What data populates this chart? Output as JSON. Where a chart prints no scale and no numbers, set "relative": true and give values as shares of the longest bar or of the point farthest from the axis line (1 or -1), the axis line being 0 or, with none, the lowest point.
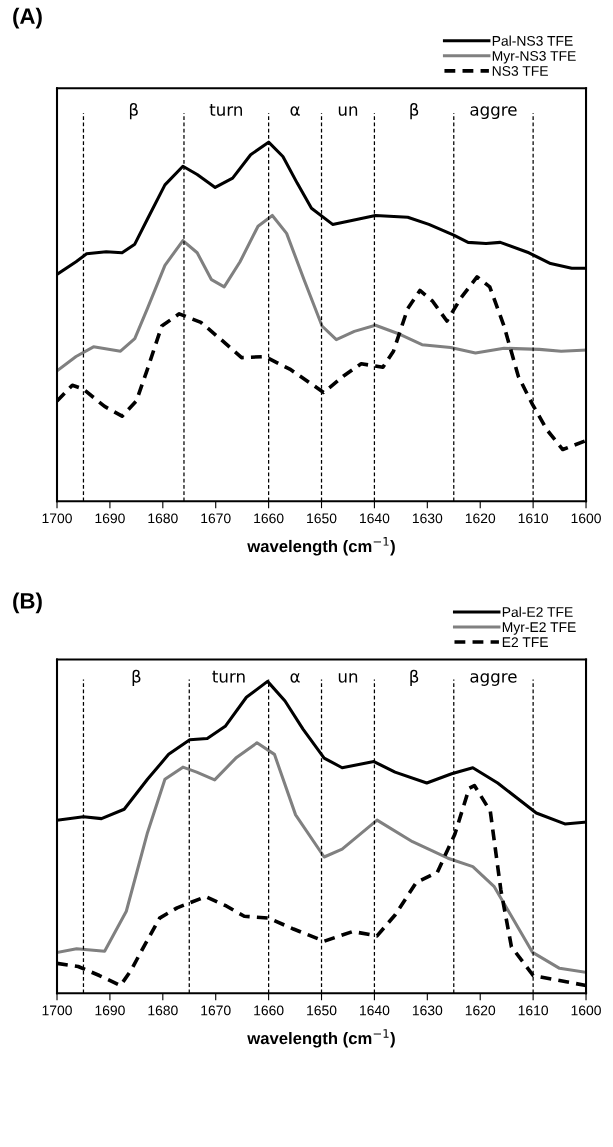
{
  "chart_data": [
    {
      "type": "line",
      "title": "(A)",
      "xlabel": "wavelength (cm$^{−1}$)",
      "relative": true,
      "legend": "top right",
      "tick_labels": "x",
      "grid": false,
      "xlim": [
        1700,
        1600
      ],
      "xticks": [
        1700,
        1690,
        1680,
        1670,
        1660,
        1650,
        1640,
        1630,
        1620,
        1610,
        1600
      ],
      "ref_lines": [
        {
          "axis": "x",
          "value": 1695,
          "line_style": "dashed",
          "color": "#000000"
        },
        {
          "axis": "x",
          "value": 1676,
          "line_style": "dashed",
          "color": "#000000"
        },
        {
          "axis": "x",
          "value": 1660,
          "line_style": "dashed",
          "color": "#000000"
        },
        {
          "axis": "x",
          "value": 1650,
          "line_style": "dashed",
          "color": "#000000"
        },
        {
          "axis": "x",
          "value": 1640,
          "line_style": "dashed",
          "color": "#000000"
        },
        {
          "axis": "x",
          "value": 1625,
          "line_style": "dashed",
          "color": "#000000"
        },
        {
          "axis": "x",
          "value": 1610,
          "line_style": "dashed",
          "color": "#000000"
        }
      ],
      "annotations": [
        "β",
        "turn",
        "α",
        "un",
        "β",
        "aggre"
      ],
      "series": [
        {
          "name": "Pal-NS3 TFE",
          "color": "#000000",
          "line_style": "solid",
          "x": [
            1700,
            1696.4,
            1694.4,
            1690.7,
            1687.7,
            1685.3,
            1682.9,
            1679.6,
            1676.2,
            1673.5,
            1670.1,
            1666.8,
            1663.4,
            1660,
            1657.3,
            1654.6,
            1651.9,
            1647.9,
            1644.5,
            1639.8,
            1633.7,
            1629.7,
            1625,
            1622.3,
            1618.9,
            1616.2,
            1610.8,
            1606.7,
            1602.7,
            1600
          ],
          "values": [
            0.632,
            0.667,
            0.689,
            0.695,
            0.692,
            0.716,
            0.786,
            0.881,
            0.933,
            0.91,
            0.874,
            0.9,
            0.965,
            1.0,
            0.96,
            0.886,
            0.816,
            0.771,
            0.781,
            0.796,
            0.791,
            0.771,
            0.741,
            0.721,
            0.718,
            0.721,
            0.692,
            0.662,
            0.649,
            0.649
          ]
        },
        {
          "name": "Myr-NS3 TFE",
          "color": "#808080",
          "line_style": "solid",
          "x": [
            1700,
            1696.4,
            1693.1,
            1688,
            1685.3,
            1682.9,
            1679.6,
            1676.2,
            1673.5,
            1670.8,
            1668.4,
            1665.4,
            1662,
            1659.3,
            1656.6,
            1653.3,
            1649.9,
            1647.2,
            1643.8,
            1639.8,
            1635.7,
            1631,
            1625.6,
            1620.9,
            1615.5,
            1608.8,
            1604.7,
            1600
          ],
          "values": [
            0.363,
            0.403,
            0.43,
            0.418,
            0.453,
            0.537,
            0.657,
            0.726,
            0.692,
            0.617,
            0.597,
            0.667,
            0.766,
            0.796,
            0.746,
            0.617,
            0.488,
            0.45,
            0.473,
            0.49,
            0.468,
            0.436,
            0.428,
            0.413,
            0.426,
            0.423,
            0.418,
            0.421
          ]
        },
        {
          "name": "NS3 TFE",
          "color": "#000000",
          "line_style": "dashed",
          "x": [
            1700,
            1697.1,
            1695.1,
            1691,
            1687.7,
            1685,
            1682.9,
            1680.2,
            1676.9,
            1672.8,
            1668.8,
            1665.1,
            1660.7,
            1656,
            1649.6,
            1645.9,
            1642.5,
            1638.4,
            1636.4,
            1633.7,
            1631.4,
            1629,
            1626.3,
            1623.6,
            1620.6,
            1618.2,
            1615.5,
            1612.8,
            1610.1,
            1607.4,
            1604.4,
            1600
          ],
          "values": [
            0.279,
            0.323,
            0.313,
            0.264,
            0.237,
            0.279,
            0.368,
            0.488,
            0.522,
            0.498,
            0.448,
            0.4,
            0.403,
            0.368,
            0.303,
            0.348,
            0.383,
            0.373,
            0.418,
            0.537,
            0.587,
            0.557,
            0.502,
            0.567,
            0.625,
            0.597,
            0.488,
            0.348,
            0.269,
            0.199,
            0.144,
            0.169
          ]
        }
      ]
    },
    {
      "type": "line",
      "title": "(B)",
      "xlabel": "wavelength (cm$^{−1}$)",
      "relative": true,
      "legend": "top right",
      "tick_labels": "x",
      "grid": false,
      "xlim": [
        1700,
        1600
      ],
      "xticks": [
        1700,
        1690,
        1680,
        1670,
        1660,
        1650,
        1640,
        1630,
        1620,
        1610,
        1600
      ],
      "ref_lines": [
        {
          "axis": "x",
          "value": 1695,
          "line_style": "dashed",
          "color": "#000000"
        },
        {
          "axis": "x",
          "value": 1675,
          "line_style": "dashed",
          "color": "#000000"
        },
        {
          "axis": "x",
          "value": 1660,
          "line_style": "dashed",
          "color": "#000000"
        },
        {
          "axis": "x",
          "value": 1650,
          "line_style": "dashed",
          "color": "#000000"
        },
        {
          "axis": "x",
          "value": 1640,
          "line_style": "dashed",
          "color": "#000000"
        },
        {
          "axis": "x",
          "value": 1625,
          "line_style": "dashed",
          "color": "#000000"
        },
        {
          "axis": "x",
          "value": 1610,
          "line_style": "dashed",
          "color": "#000000"
        }
      ],
      "annotations": [
        "β",
        "turn",
        "α",
        "un",
        "β",
        "aggre"
      ],
      "series": [
        {
          "name": "Pal-E2 TFE",
          "color": "#000000",
          "line_style": "solid",
          "x": [
            1700,
            1695,
            1691.6,
            1687.3,
            1682.9,
            1678.9,
            1674.9,
            1671.6,
            1668.2,
            1664.2,
            1660.2,
            1656.9,
            1653.5,
            1649.5,
            1646.1,
            1640.1,
            1636.1,
            1630.1,
            1625.4,
            1621.4,
            1616.7,
            1609.4,
            1604,
            1600
          ],
          "values": [
            0.555,
            0.566,
            0.56,
            0.59,
            0.686,
            0.766,
            0.813,
            0.817,
            0.856,
            0.949,
            1.0,
            0.937,
            0.847,
            0.754,
            0.723,
            0.743,
            0.709,
            0.674,
            0.704,
            0.723,
            0.674,
            0.578,
            0.543,
            0.549
          ]
        },
        {
          "name": "Myr-E2 TFE",
          "color": "#808080",
          "line_style": "solid",
          "x": [
            1700,
            1696.3,
            1691,
            1686.9,
            1682.9,
            1679.6,
            1676.2,
            1673.6,
            1670.2,
            1666.2,
            1662.2,
            1658.9,
            1654.9,
            1649.5,
            1646.1,
            1639.5,
            1632.8,
            1626.1,
            1621.4,
            1617.4,
            1610.1,
            1605,
            1600
          ],
          "values": [
            0.131,
            0.143,
            0.135,
            0.263,
            0.515,
            0.686,
            0.725,
            0.709,
            0.684,
            0.754,
            0.803,
            0.766,
            0.572,
            0.437,
            0.462,
            0.555,
            0.486,
            0.433,
            0.406,
            0.343,
            0.131,
            0.08,
            0.067
          ]
        },
        {
          "name": "E2 TFE",
          "color": "#000000",
          "line_style": "dashed",
          "x": [
            1700,
            1696,
            1692,
            1688,
            1686,
            1684,
            1680.6,
            1677.3,
            1671.9,
            1668,
            1664.6,
            1660,
            1655.3,
            1649.5,
            1644.1,
            1639.5,
            1636.1,
            1632.1,
            1628.1,
            1624.8,
            1622.1,
            1621.1,
            1618.1,
            1616.1,
            1614.1,
            1610,
            1605,
            1600
          ],
          "values": [
            0.096,
            0.086,
            0.057,
            0.025,
            0.074,
            0.137,
            0.241,
            0.274,
            0.31,
            0.28,
            0.247,
            0.241,
            0.206,
            0.167,
            0.198,
            0.184,
            0.251,
            0.355,
            0.388,
            0.51,
            0.657,
            0.666,
            0.584,
            0.331,
            0.149,
            0.057,
            0.041,
            0.025
          ]
        }
      ]
    }
  ]
}
